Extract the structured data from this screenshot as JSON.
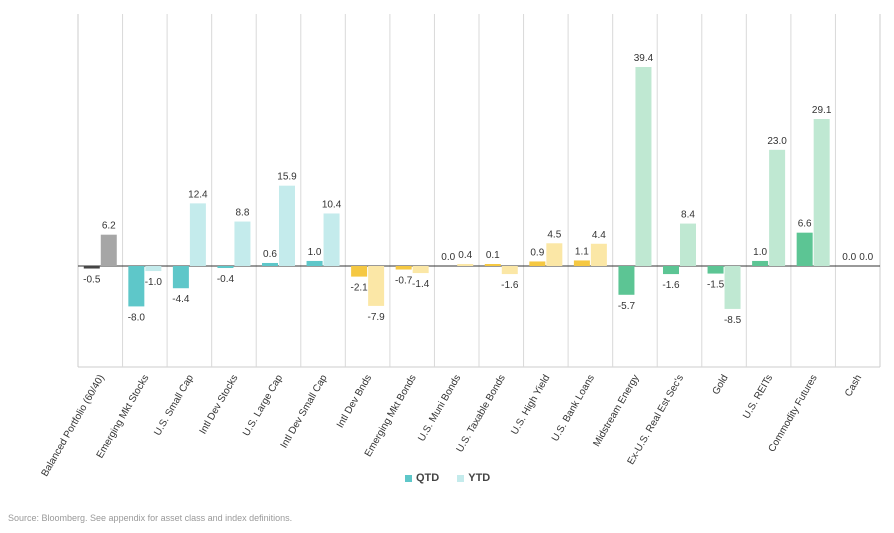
{
  "chart_data": {
    "type": "bar",
    "title": "",
    "xlabel": "",
    "ylabel": "",
    "ylim": [
      -17,
      46
    ],
    "categories": [
      "Balanced Portfolio (60/40)",
      "Emerging Mkt Stocks",
      "U.S. Small Cap",
      "Intl Dev Stocks",
      "U.S. Large Cap",
      "Intl Dev Small Cap",
      "Intl Dev Bnds",
      "Emerging Mkt Bonds",
      "U.S. Muni Bonds",
      "U.S. Taxable Bonds",
      "U.S. High Yield",
      "U.S. Bank Loans",
      "Midstream Energy",
      "Ex-U.S. Real Est Sec's",
      "Gold",
      "U.S. REITs",
      "Commodity Futures",
      "Cash"
    ],
    "series": [
      {
        "name": "QTD",
        "values": [
          -0.5,
          -8.0,
          -4.4,
          -0.4,
          0.6,
          1.0,
          -2.1,
          -0.7,
          0.0,
          0.1,
          0.9,
          1.1,
          -5.7,
          -1.6,
          -1.5,
          1.0,
          6.6,
          0.0
        ]
      },
      {
        "name": "YTD",
        "values": [
          6.2,
          -1.0,
          12.4,
          8.8,
          15.9,
          10.4,
          -7.9,
          -1.4,
          0.4,
          -1.6,
          4.5,
          4.4,
          39.4,
          8.4,
          -8.5,
          23.0,
          29.1,
          0.0
        ]
      }
    ],
    "value_labels": {
      "QTD": [
        "-0.5",
        "-8.0",
        "-4.4",
        "-0.4",
        "0.6",
        "1.0",
        "-2.1",
        "-0.7",
        "0.0",
        "0.1",
        "0.9",
        "1.1",
        "-5.7",
        "-1.6",
        "-1.5",
        "1.0",
        "6.6",
        "0.0"
      ],
      "YTD": [
        "6.2",
        "-1.0",
        "12.4",
        "8.8",
        "15.9",
        "10.4",
        "-7.9",
        "-1.4",
        "0.4",
        "-1.6",
        "4.5",
        "4.4",
        "39.4",
        "8.4",
        "-8.5",
        "23.0",
        "29.1",
        "0.0"
      ]
    },
    "colors": {
      "QTD": [
        "#454545",
        "#5ec7c9",
        "#5ec7c9",
        "#5ec7c9",
        "#5ec7c9",
        "#5ec7c9",
        "#f5c842",
        "#f5c842",
        "#f5c842",
        "#f5c842",
        "#f5c842",
        "#f5c842",
        "#5cc594",
        "#5cc594",
        "#5cc594",
        "#5cc594",
        "#5cc594",
        "#5cc594"
      ],
      "YTD": [
        "#a6a6a6",
        "#c4ebec",
        "#c4ebec",
        "#c4ebec",
        "#c4ebec",
        "#c4ebec",
        "#fbe7a6",
        "#fbe7a6",
        "#fbe7a6",
        "#fbe7a6",
        "#fbe7a6",
        "#fbe7a6",
        "#bfe8d2",
        "#bfe8d2",
        "#bfe8d2",
        "#bfe8d2",
        "#bfe8d2",
        "#bfe8d2"
      ]
    },
    "grid": "vertical-category-separators",
    "legend": [
      {
        "label": "QTD",
        "color": "#5ec7c9"
      },
      {
        "label": "YTD",
        "color": "#c4ebec"
      }
    ],
    "legend_position": "bottom-center"
  },
  "source_note": "Source: Bloomberg. See appendix for asset class and index definitions."
}
